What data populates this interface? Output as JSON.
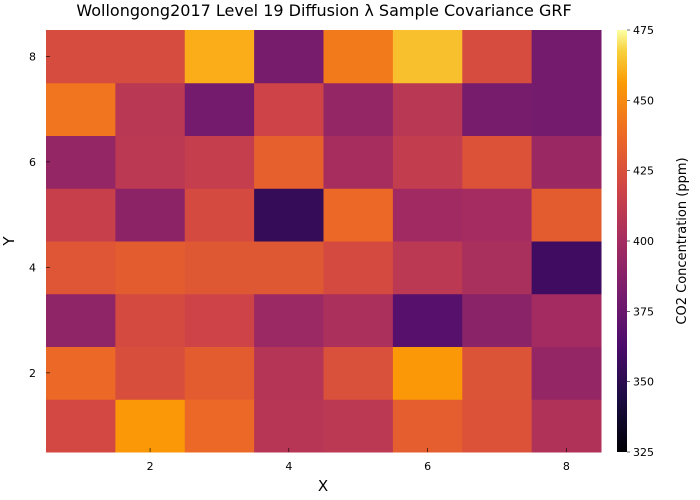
{
  "chart_data": {
    "type": "heatmap",
    "title": "Wollongong2017 Level 19 Diffusion λ Sample Covariance GRF",
    "xlabel": "X",
    "ylabel": "Y",
    "colorbar_label": "CO2 Concentration (ppm)",
    "x": [
      1,
      2,
      3,
      4,
      5,
      6,
      7,
      8
    ],
    "y": [
      1,
      2,
      3,
      4,
      5,
      6,
      7,
      8
    ],
    "xlim": [
      0.5,
      8.5
    ],
    "ylim": [
      0.5,
      8.5
    ],
    "x_ticks": [
      "2",
      "4",
      "6",
      "8"
    ],
    "y_ticks": [
      "2",
      "4",
      "6",
      "8"
    ],
    "clim": [
      325,
      475
    ],
    "colorbar_ticks": [
      "325",
      "350",
      "375",
      "400",
      "425",
      "450",
      "475"
    ],
    "colormap": "inferno",
    "grid": false,
    "values": [
      [
        421,
        455,
        437,
        408,
        410,
        432,
        426,
        405
      ],
      [
        437,
        424,
        431,
        407,
        425,
        455,
        427,
        393
      ],
      [
        391,
        422,
        418,
        396,
        403,
        368,
        389,
        399
      ],
      [
        428,
        431,
        429,
        429,
        422,
        410,
        402,
        358
      ],
      [
        415,
        390,
        422,
        354,
        437,
        398,
        400,
        431
      ],
      [
        393,
        410,
        414,
        433,
        401,
        413,
        426,
        395
      ],
      [
        442,
        409,
        380,
        418,
        393,
        409,
        381,
        380
      ],
      [
        423,
        423,
        460,
        381,
        444,
        464,
        423,
        380
      ]
    ]
  }
}
